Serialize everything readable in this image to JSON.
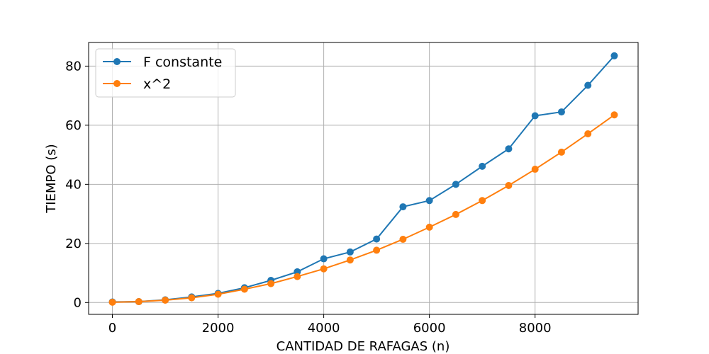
{
  "chart_data": {
    "type": "line",
    "title": "",
    "xlabel": "CANTIDAD DE RAFAGAS (n)",
    "ylabel": "TIEMPO (s)",
    "xlim": [
      -450,
      9950
    ],
    "ylim": [
      -4,
      88
    ],
    "xticks": [
      0,
      2000,
      4000,
      6000,
      8000
    ],
    "yticks": [
      0,
      20,
      40,
      60,
      80
    ],
    "xtick_labels": [
      "0",
      "2000",
      "4000",
      "6000",
      "8000"
    ],
    "ytick_labels": [
      "0",
      "20",
      "40",
      "60",
      "80"
    ],
    "grid": true,
    "legend_position": "top-left",
    "x": [
      0,
      500,
      1000,
      1500,
      2000,
      2500,
      3000,
      3500,
      4000,
      4500,
      5000,
      5500,
      6000,
      6500,
      7000,
      7500,
      8000,
      8500,
      9000,
      9500
    ],
    "series": [
      {
        "name": "F constante",
        "color": "#1f77b4",
        "marker": "circle",
        "values": [
          0.2,
          0.3,
          0.9,
          1.9,
          3.1,
          5.0,
          7.5,
          10.4,
          14.8,
          17.1,
          21.5,
          32.4,
          34.5,
          40.0,
          46.1,
          52.0,
          63.2,
          64.5,
          73.5,
          83.5
        ]
      },
      {
        "name": "x^2",
        "color": "#ff7f0e",
        "marker": "circle",
        "values": [
          0.1,
          0.3,
          0.8,
          1.6,
          2.8,
          4.5,
          6.4,
          8.8,
          11.4,
          14.4,
          17.7,
          21.4,
          25.5,
          29.8,
          34.5,
          39.6,
          45.1,
          50.9,
          57.1,
          63.5
        ]
      }
    ]
  }
}
